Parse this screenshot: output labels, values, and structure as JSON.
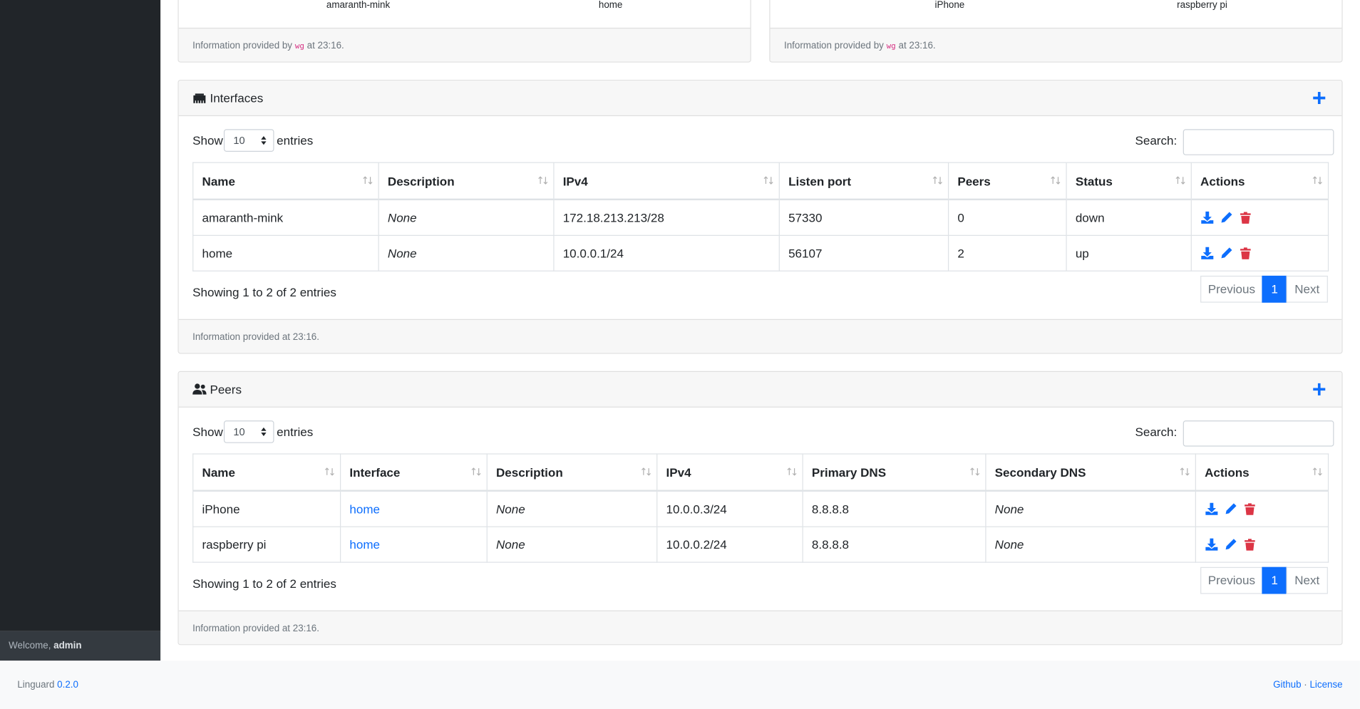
{
  "summary_cards": [
    {
      "items": [
        "amaranth-mink",
        "home"
      ],
      "footer": {
        "prefix": "Information provided by",
        "source": "wg",
        "suffix": "at 23:16."
      }
    },
    {
      "items": [
        "iPhone",
        "raspberry pi"
      ],
      "footer": {
        "prefix": "Information provided by",
        "source": "wg",
        "suffix": "at 23:16."
      }
    }
  ],
  "interfaces": {
    "title": "Interfaces",
    "show_label": "Show",
    "page_size": "10",
    "entries_label": "entries",
    "search_label": "Search:",
    "columns": [
      "Name",
      "Description",
      "IPv4",
      "Listen port",
      "Peers",
      "Status",
      "Actions"
    ],
    "rows": [
      [
        "amaranth-mink",
        "None",
        "172.18.213.213/28",
        "57330",
        "0",
        "down"
      ],
      [
        "home",
        "None",
        "10.0.0.1/24",
        "56107",
        "2",
        "up"
      ]
    ],
    "info": "Showing 1 to 2 of 2 entries",
    "pagination": {
      "previous": "Previous",
      "current": "1",
      "next": "Next"
    },
    "footer": "Information provided at 23:16."
  },
  "peers": {
    "title": "Peers",
    "show_label": "Show",
    "page_size": "10",
    "entries_label": "entries",
    "search_label": "Search:",
    "columns": [
      "Name",
      "Interface",
      "Description",
      "IPv4",
      "Primary DNS",
      "Secondary DNS",
      "Actions"
    ],
    "rows": [
      [
        "iPhone",
        "home",
        "None",
        "10.0.0.3/24",
        "8.8.8.8",
        "None"
      ],
      [
        "raspberry pi",
        "home",
        "None",
        "10.0.0.2/24",
        "8.8.8.8",
        "None"
      ]
    ],
    "info": "Showing 1 to 2 of 2 entries",
    "pagination": {
      "previous": "Previous",
      "current": "1",
      "next": "Next"
    },
    "footer": "Information provided at 23:16."
  },
  "sidebar": {
    "welcome": "Welcome,",
    "user": "admin"
  },
  "footer": {
    "app": "Linguard",
    "version": "0.2.0",
    "links": [
      "Github",
      "License"
    ],
    "separator": "·"
  }
}
